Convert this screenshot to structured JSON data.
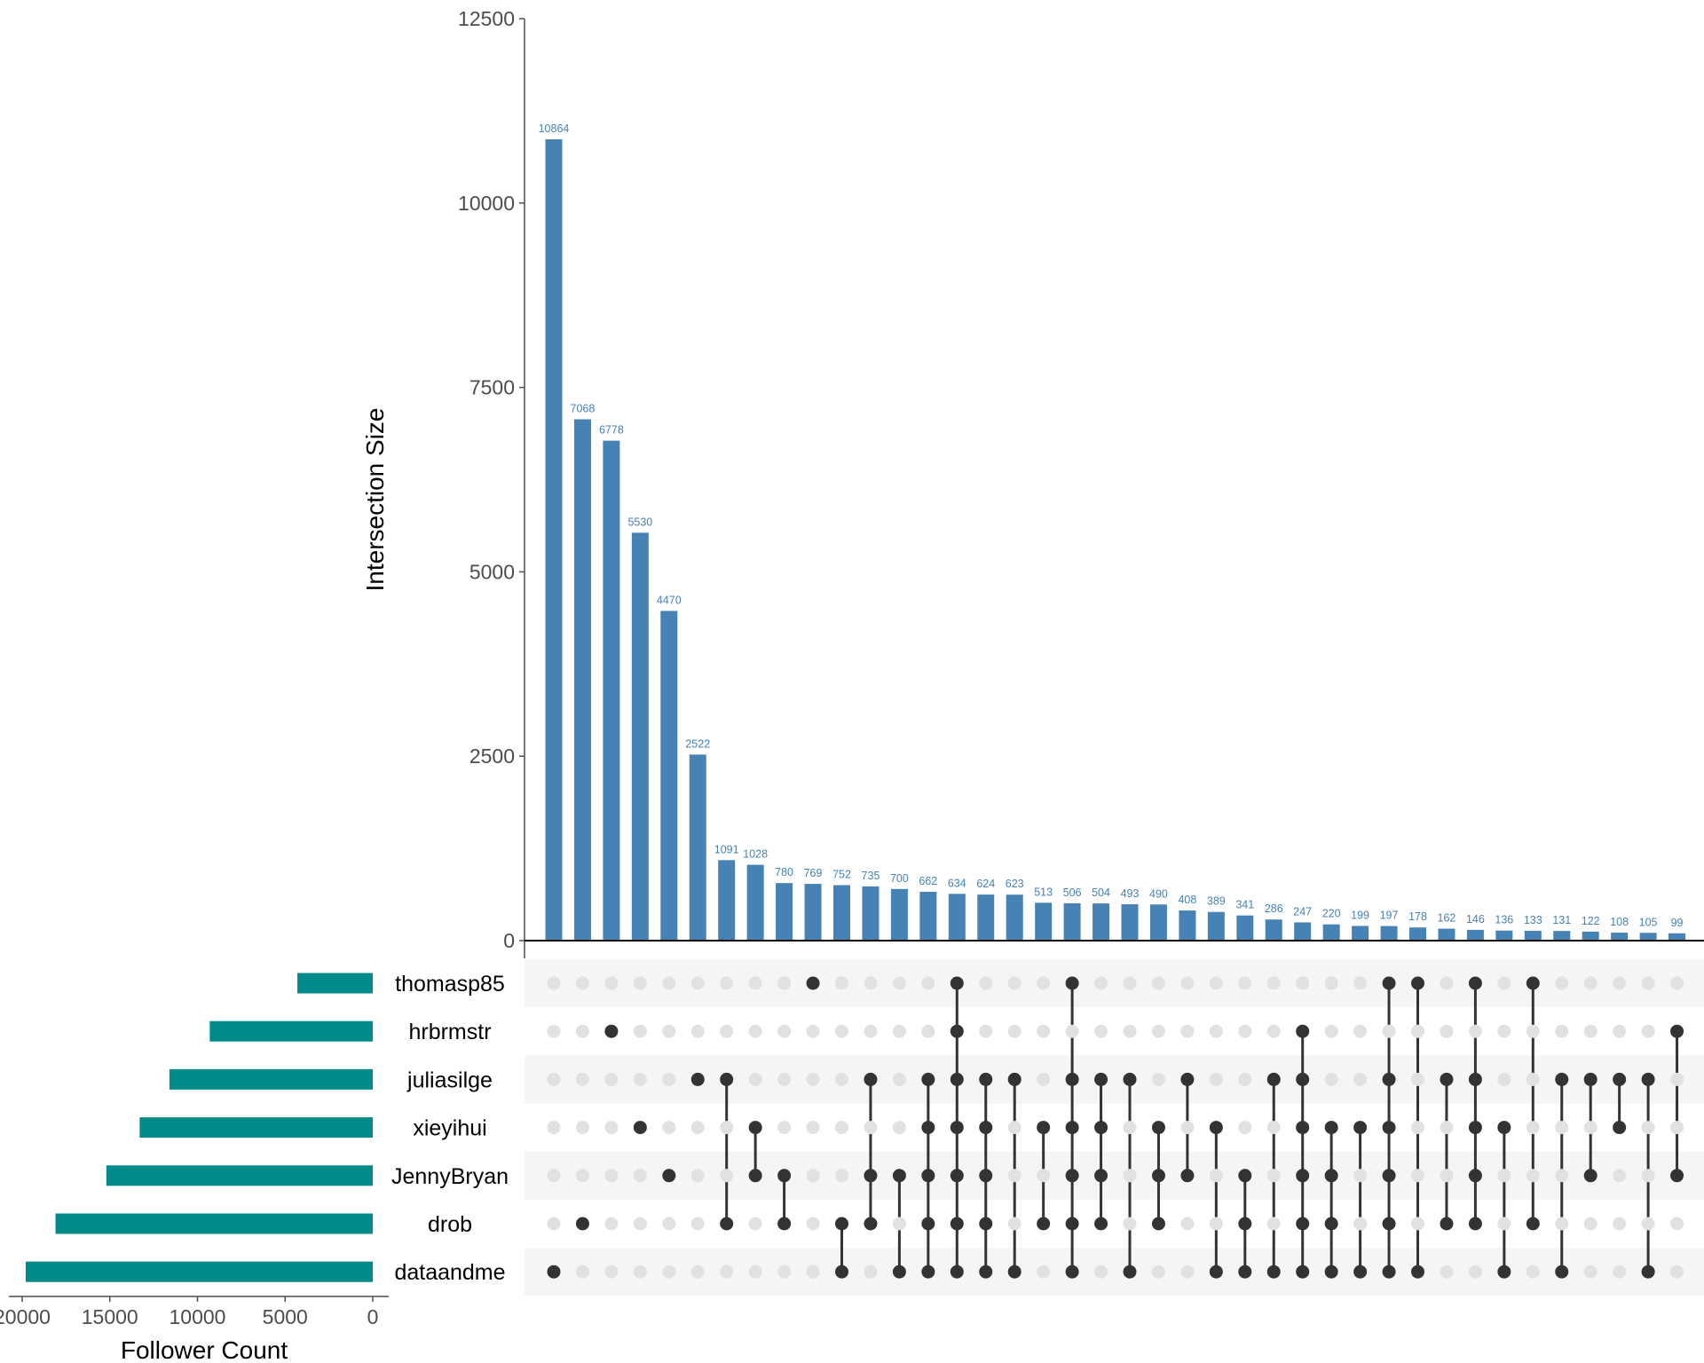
{
  "chart_data": {
    "type": "upset",
    "colors": {
      "bars": "#4682b4",
      "set_bars": "#008b8b",
      "dot_active": "#333333",
      "dot_inactive": "#e1e1e1",
      "stripe": "#f5f5f5",
      "axis": "#4d4d4d"
    },
    "intersections": {
      "ylabel": "Intersection Size",
      "ylim": [
        0,
        12500
      ],
      "yticks": [
        0,
        2500,
        5000,
        7500,
        10000,
        12500
      ],
      "ytick_labels": [
        "0",
        "2500",
        "5000",
        "7500",
        "10000",
        "12500"
      ],
      "values": [
        10864,
        7068,
        6778,
        5530,
        4470,
        2522,
        1091,
        1028,
        780,
        769,
        752,
        735,
        700,
        662,
        634,
        624,
        623,
        513,
        506,
        504,
        493,
        490,
        408,
        389,
        341,
        286,
        247,
        220,
        199,
        197,
        178,
        162,
        146,
        136,
        133,
        131,
        122,
        108,
        105,
        99
      ],
      "labels": [
        "10864",
        "7068",
        "6778",
        "5530",
        "4470",
        "2522",
        "1091",
        "1028",
        "780",
        "769",
        "752",
        "735",
        "700",
        "662",
        "634",
        "624",
        "623",
        "513",
        "506",
        "504",
        "493",
        "490",
        "408",
        "389",
        "341",
        "286",
        "247",
        "220",
        "199",
        "197",
        "178",
        "162",
        "146",
        "136",
        "133",
        "131",
        "122",
        "108",
        "105",
        "99"
      ]
    },
    "sets": {
      "names": [
        "thomasp85",
        "hrbrmstr",
        "juliasilge",
        "xieyihui",
        "JennyBryan",
        "drob",
        "dataandme"
      ],
      "sizes": [
        4300,
        9300,
        11600,
        13300,
        15200,
        18100,
        19800
      ],
      "xlabel": "Follower Count",
      "xlim": [
        0,
        20000
      ],
      "xticks": [
        20000,
        15000,
        10000,
        5000,
        0
      ],
      "xtick_labels": [
        "20000",
        "15000",
        "10000",
        "5000",
        "0"
      ]
    },
    "matrix": [
      [
        6
      ],
      [
        5
      ],
      [
        1
      ],
      [
        3
      ],
      [
        4
      ],
      [
        2
      ],
      [
        2,
        5
      ],
      [
        3,
        4
      ],
      [
        4,
        5
      ],
      [
        0
      ],
      [
        5,
        6
      ],
      [
        2,
        4,
        5
      ],
      [
        4,
        6
      ],
      [
        2,
        3,
        4,
        5,
        6
      ],
      [
        0,
        1,
        2,
        3,
        4,
        5,
        6
      ],
      [
        2,
        3,
        4,
        5,
        6
      ],
      [
        2,
        6
      ],
      [
        3,
        5
      ],
      [
        0,
        2,
        3,
        4,
        5,
        6
      ],
      [
        2,
        3,
        4,
        5
      ],
      [
        2,
        6
      ],
      [
        3,
        4,
        5
      ],
      [
        2,
        4
      ],
      [
        3,
        6
      ],
      [
        4,
        5,
        6
      ],
      [
        2,
        6
      ],
      [
        1,
        2,
        3,
        4,
        5,
        6
      ],
      [
        3,
        4,
        5,
        6
      ],
      [
        3,
        6
      ],
      [
        0,
        2,
        3,
        4,
        5,
        6
      ],
      [
        0,
        6
      ],
      [
        2,
        5
      ],
      [
        0,
        2,
        3,
        4,
        5
      ],
      [
        3,
        6
      ],
      [
        0,
        5
      ],
      [
        2,
        6
      ],
      [
        2,
        4
      ],
      [
        2,
        3
      ],
      [
        2,
        6
      ],
      [
        1,
        4
      ]
    ]
  }
}
